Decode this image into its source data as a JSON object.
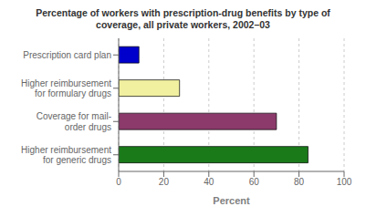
{
  "chart_data": {
    "type": "bar",
    "title": "Percentage of workers with prescription-drug benefits by type of\ncoverage, all private workers, 2002–03",
    "orientation": "horizontal",
    "categories": [
      "Prescription card plan",
      "Higher reimbursement\nfor formulary drugs",
      "Coverage for mail-\norder drugs",
      "Higher reimbursement\nfor generic drugs"
    ],
    "values": [
      9,
      27,
      70,
      84
    ],
    "colors": [
      "#0000cc",
      "#f0f0a0",
      "#8b3a6b",
      "#1a7a1a"
    ],
    "xlabel": "Percent",
    "xlim": [
      0,
      100
    ],
    "xticks": [
      0,
      20,
      40,
      60,
      80,
      100
    ],
    "grid": true
  }
}
